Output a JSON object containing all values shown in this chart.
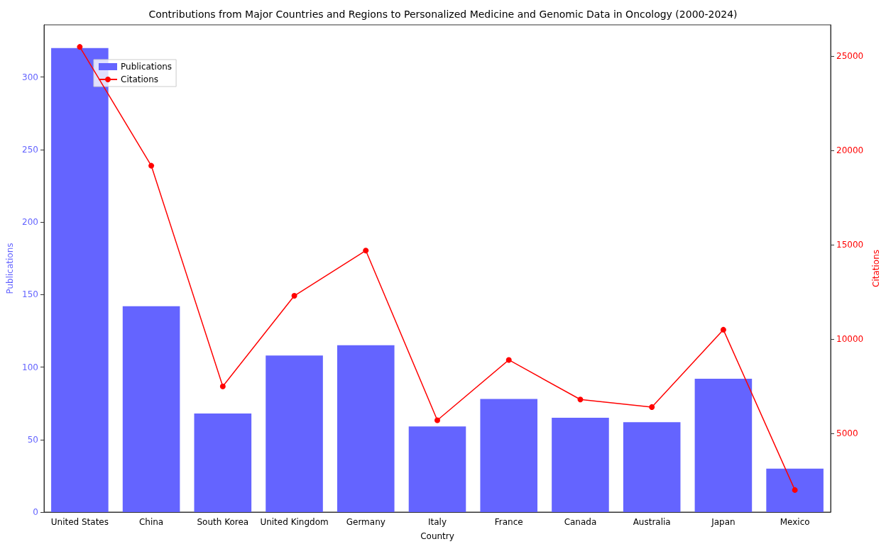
{
  "chart_data": {
    "type": "bar",
    "title": "Contributions from Major Countries and Regions to Personalized Medicine and Genomic Data in Oncology (2000-2024)",
    "xlabel": "Country",
    "ylabel": "Publications",
    "y2label": "Citations",
    "categories": [
      "United States",
      "China",
      "South Korea",
      "United Kingdom",
      "Germany",
      "Italy",
      "France",
      "Canada",
      "Australia",
      "Japan",
      "Mexico"
    ],
    "series": [
      {
        "name": "Publications",
        "color": "#6464ff",
        "values": [
          320,
          142,
          68,
          108,
          115,
          59,
          78,
          65,
          62,
          92,
          30
        ]
      },
      {
        "name": "Citations",
        "type": "line",
        "axis": "y2",
        "color": "#ff0000",
        "values": [
          25500,
          19200,
          7500,
          12300,
          14700,
          5700,
          8900,
          6800,
          6400,
          10500,
          2000
        ]
      }
    ],
    "ylim": [
      0,
      336
    ],
    "yticks": [
      0,
      50,
      100,
      150,
      200,
      250,
      300
    ],
    "y2lim": [
      830,
      26670
    ],
    "y2ticks": [
      5000,
      10000,
      15000,
      20000,
      25000
    ],
    "legend": "top left",
    "marker": "circle",
    "grid": false
  }
}
